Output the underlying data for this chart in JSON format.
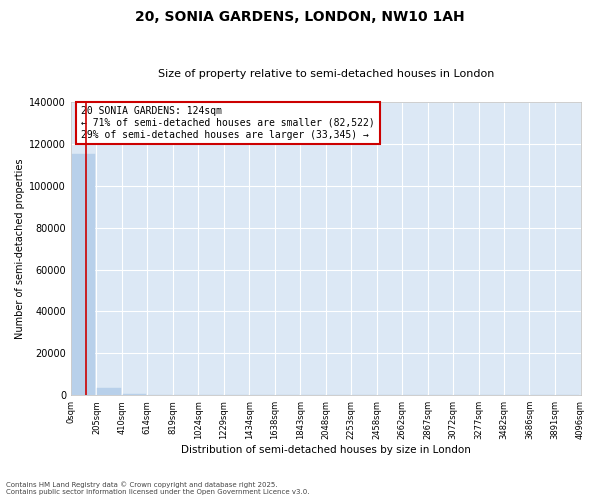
{
  "title": "20, SONIA GARDENS, LONDON, NW10 1AH",
  "subtitle": "Size of property relative to semi-detached houses in London",
  "xlabel": "Distribution of semi-detached houses by size in London",
  "ylabel": "Number of semi-detached properties",
  "property_size": 124,
  "annotation_text_line1": "20 SONIA GARDENS: 124sqm",
  "annotation_text_line2": "← 71% of semi-detached houses are smaller (82,522)",
  "annotation_text_line3": "29% of semi-detached houses are larger (33,345) →",
  "footnote1": "Contains HM Land Registry data © Crown copyright and database right 2025.",
  "footnote2": "Contains public sector information licensed under the Open Government Licence v3.0.",
  "bar_color": "#b8d0ea",
  "red_line_color": "#cc0000",
  "annotation_box_edge": "#cc0000",
  "background_color": "#dce8f5",
  "grid_color": "#ffffff",
  "bin_edges": [
    0,
    205,
    410,
    614,
    819,
    1024,
    1229,
    1434,
    1638,
    1843,
    2048,
    2253,
    2458,
    2662,
    2867,
    3072,
    3277,
    3482,
    3686,
    3891,
    4096
  ],
  "bin_labels": [
    "0sqm",
    "205sqm",
    "410sqm",
    "614sqm",
    "819sqm",
    "1024sqm",
    "1229sqm",
    "1434sqm",
    "1638sqm",
    "1843sqm",
    "2048sqm",
    "2253sqm",
    "2458sqm",
    "2662sqm",
    "2867sqm",
    "3072sqm",
    "3277sqm",
    "3482sqm",
    "3686sqm",
    "3891sqm",
    "4096sqm"
  ],
  "bar_heights": [
    115000,
    3500,
    400,
    100,
    50,
    30,
    20,
    15,
    10,
    8,
    6,
    5,
    4,
    3,
    3,
    2,
    2,
    2,
    1,
    1
  ],
  "ylim": [
    0,
    140000
  ],
  "yticks": [
    0,
    20000,
    40000,
    60000,
    80000,
    100000,
    120000,
    140000
  ]
}
